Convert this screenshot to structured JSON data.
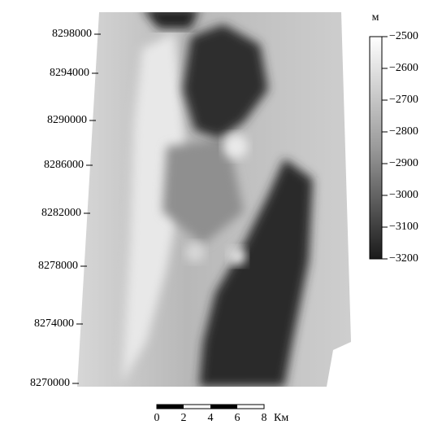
{
  "y_axis": {
    "labels": [
      "8298000",
      "8294000",
      "8290000",
      "8286000",
      "8282000",
      "8278000",
      "8274000",
      "8270000"
    ]
  },
  "colorbar": {
    "unit": "м",
    "labels": [
      "−2500",
      "−2600",
      "−2700",
      "−2800",
      "−2900",
      "−3000",
      "−3100",
      "−3200"
    ]
  },
  "scale_bar": {
    "labels": [
      "0",
      "2",
      "4",
      "6",
      "8"
    ],
    "unit": "Км"
  }
}
